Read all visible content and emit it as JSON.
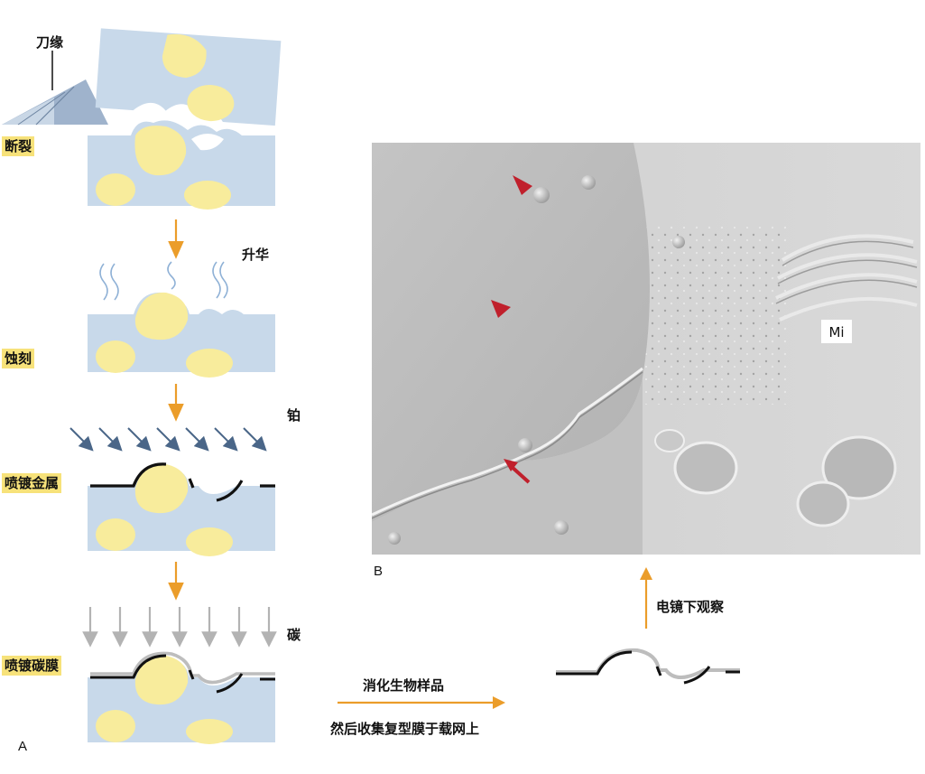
{
  "panel_a": {
    "letter": "A",
    "knife_label": "刀缘",
    "stages": [
      {
        "label": "断裂"
      },
      {
        "label": "蚀刻",
        "side_label": "升华"
      },
      {
        "label": "喷镀金属",
        "side_label": "铂"
      },
      {
        "label": "喷镀碳膜",
        "side_label": "碳"
      }
    ]
  },
  "panel_b": {
    "letter": "B",
    "region_label": "Mi"
  },
  "flow": {
    "step1_line1": "消化生物样品",
    "step1_line2": "然后收集复型膜于载网上",
    "step2": "电镜下观察"
  },
  "colors": {
    "sample_blue": "#c8d9ea",
    "cell_yellow": "#f8ec9c",
    "label_highlight": "#f7e27a",
    "arrow_orange": "#eb9d2a",
    "platinum_arrow": "#4a6688",
    "carbon_arrow": "#b3b3b3",
    "marker_red": "#c0202c"
  },
  "icons": [
    "knife-icon",
    "vapor-icon",
    "down-arrow-icon",
    "right-arrow-icon",
    "up-arrow-icon",
    "arrowhead-marker-icon",
    "arrow-marker-icon"
  ]
}
